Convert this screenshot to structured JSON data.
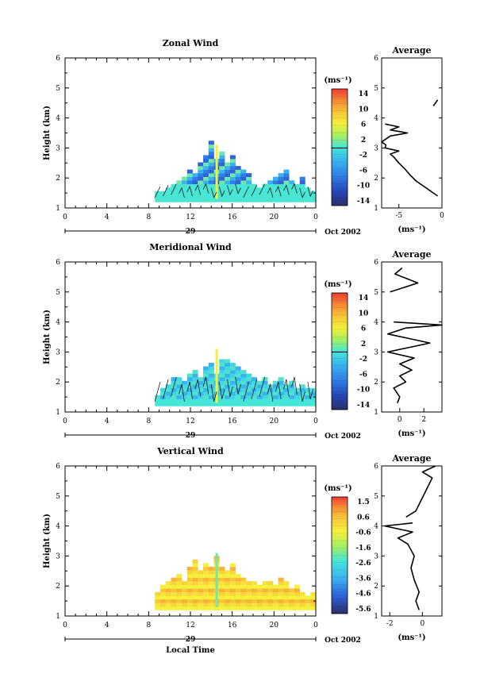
{
  "chart_data": [
    {
      "type": "heatmap",
      "title": "Zonal Wind",
      "ylabel": "Height (km)",
      "ylim": [
        1,
        6
      ],
      "xlim": [
        0,
        24
      ],
      "yticks": [
        "1",
        "2",
        "3",
        "4",
        "5",
        "6"
      ],
      "xticks": [
        "0",
        "4",
        "8",
        "12",
        "16",
        "20",
        "0"
      ],
      "date_label": "29",
      "month_label": "Oct 2002",
      "colorbar": {
        "unit": "(ms⁻¹)",
        "ticks": [
          "14",
          "10",
          "6",
          "2",
          "-2",
          "-6",
          "-10",
          "-14"
        ],
        "range": [
          -16,
          16
        ]
      },
      "region": {
        "start": 8.6,
        "end": 24,
        "base": 1.2,
        "tops": [
          1.5,
          1.6,
          1.7,
          1.8,
          1.9,
          2.0,
          2.3,
          2.2,
          2.5,
          2.7,
          3.2,
          2.6,
          2.9,
          2.5,
          2.7,
          2.4,
          2.3,
          2.2,
          1.8,
          1.7,
          1.8,
          1.9,
          2.0,
          2.1,
          2.3,
          1.9,
          1.8,
          2.0,
          1.7,
          1.6
        ]
      },
      "average": {
        "title": "Average",
        "xlabel": "(ms⁻¹)",
        "xticks": [
          "-5",
          "0"
        ],
        "xlim": [
          -7,
          0
        ],
        "profile": [
          [
            -0.5,
            1.4
          ],
          [
            -1.0,
            1.5
          ],
          [
            -2.0,
            1.7
          ],
          [
            -3.0,
            1.9
          ],
          [
            -3.7,
            2.1
          ],
          [
            -4.3,
            2.3
          ],
          [
            -5.0,
            2.5
          ],
          [
            -5.6,
            2.7
          ],
          [
            -6.0,
            2.8
          ],
          [
            -5.0,
            2.9
          ],
          [
            -6.6,
            3.0
          ],
          [
            -6.5,
            3.1
          ],
          [
            -7.0,
            3.2
          ],
          [
            -6.0,
            3.4
          ],
          [
            -4.0,
            3.5
          ],
          [
            -6.0,
            3.6
          ],
          [
            -5.0,
            3.7
          ],
          [
            -6.6,
            3.8
          ]
        ],
        "profile_upper": [
          [
            -1.0,
            4.4
          ],
          [
            -0.5,
            4.6
          ]
        ]
      }
    },
    {
      "type": "heatmap",
      "title": "Meridional Wind",
      "ylabel": "Height (km)",
      "ylim": [
        1,
        6
      ],
      "xlim": [
        0,
        24
      ],
      "yticks": [
        "1",
        "2",
        "3",
        "4",
        "5",
        "6"
      ],
      "xticks": [
        "0",
        "4",
        "8",
        "12",
        "16",
        "20",
        "0"
      ],
      "date_label": "29",
      "month_label": "Oct 2002",
      "colorbar": {
        "unit": "(ms⁻¹)",
        "ticks": [
          "14",
          "10",
          "6",
          "2",
          "-2",
          "-6",
          "-10",
          "-14"
        ],
        "range": [
          -16,
          16
        ]
      },
      "region": {
        "start": 8.6,
        "end": 24,
        "base": 1.2,
        "tops": [
          1.6,
          1.8,
          1.9,
          2.1,
          2.2,
          2.0,
          2.3,
          2.4,
          2.2,
          2.5,
          2.6,
          2.3,
          2.8,
          2.7,
          2.6,
          2.5,
          2.4,
          2.3,
          2.2,
          2.0,
          2.1,
          1.9,
          2.0,
          2.2,
          1.9,
          2.0,
          1.8,
          1.9,
          1.8,
          1.8
        ]
      },
      "average": {
        "title": "Average",
        "xlabel": "(ms⁻¹)",
        "xticks": [
          "0",
          "2"
        ],
        "xlim": [
          -1.5,
          3.5
        ],
        "profile": [
          [
            -0.2,
            1.3
          ],
          [
            0.0,
            1.5
          ],
          [
            -0.5,
            1.8
          ],
          [
            0.5,
            2.0
          ],
          [
            0.0,
            2.2
          ],
          [
            1.0,
            2.4
          ],
          [
            0.0,
            2.6
          ],
          [
            1.2,
            2.8
          ],
          [
            -1.0,
            3.0
          ],
          [
            2.5,
            3.3
          ],
          [
            -1.0,
            3.6
          ],
          [
            0.5,
            3.8
          ],
          [
            3.5,
            3.9
          ],
          [
            -0.5,
            4.0
          ]
        ],
        "profile_upper": [
          [
            -0.8,
            5.0
          ],
          [
            1.5,
            5.3
          ],
          [
            -0.4,
            5.6
          ],
          [
            0.2,
            5.8
          ]
        ]
      }
    },
    {
      "type": "heatmap",
      "title": "Vertical Wind",
      "ylabel": "Height (km)",
      "xlabel": "Local Time",
      "ylim": [
        1,
        6
      ],
      "xlim": [
        0,
        24
      ],
      "yticks": [
        "1",
        "2",
        "3",
        "4",
        "5",
        "6"
      ],
      "xticks": [
        "0",
        "4",
        "8",
        "12",
        "16",
        "20",
        "0"
      ],
      "date_label": "29",
      "month_label": "Oct 2002",
      "colorbar": {
        "unit": "(ms⁻¹)",
        "ticks": [
          "1.5",
          "0.6",
          "-0.6",
          "-1.6",
          "-2.6",
          "-3.6",
          "-4.6",
          "-5.6"
        ],
        "range": [
          -6,
          2
        ]
      },
      "region": {
        "start": 8.6,
        "end": 24,
        "base": 1.2,
        "tops": [
          1.8,
          2.0,
          2.2,
          2.3,
          2.4,
          2.2,
          2.6,
          2.9,
          2.5,
          2.7,
          2.6,
          3.0,
          2.6,
          2.5,
          2.8,
          2.4,
          2.3,
          2.2,
          2.1,
          2.0,
          2.1,
          2.2,
          2.0,
          2.3,
          2.1,
          1.9,
          2.0,
          1.8,
          1.7,
          1.8
        ]
      },
      "average": {
        "title": "Average",
        "xlabel": "(ms⁻¹)",
        "xticks": [
          "-2",
          "0"
        ],
        "xlim": [
          -2.5,
          1.2
        ],
        "profile": [
          [
            -0.2,
            1.2
          ],
          [
            -0.4,
            1.5
          ],
          [
            -0.2,
            1.8
          ],
          [
            -0.5,
            2.2
          ],
          [
            -0.7,
            2.6
          ],
          [
            -0.5,
            3.0
          ],
          [
            -0.9,
            3.4
          ],
          [
            -1.5,
            3.6
          ],
          [
            -0.6,
            3.8
          ],
          [
            -2.3,
            4.0
          ],
          [
            -0.6,
            4.1
          ]
        ],
        "profile_upper": [
          [
            -1.0,
            4.3
          ],
          [
            -0.4,
            4.5
          ],
          [
            0.6,
            5.6
          ],
          [
            0.0,
            5.8
          ],
          [
            0.8,
            6.0
          ]
        ]
      }
    }
  ]
}
